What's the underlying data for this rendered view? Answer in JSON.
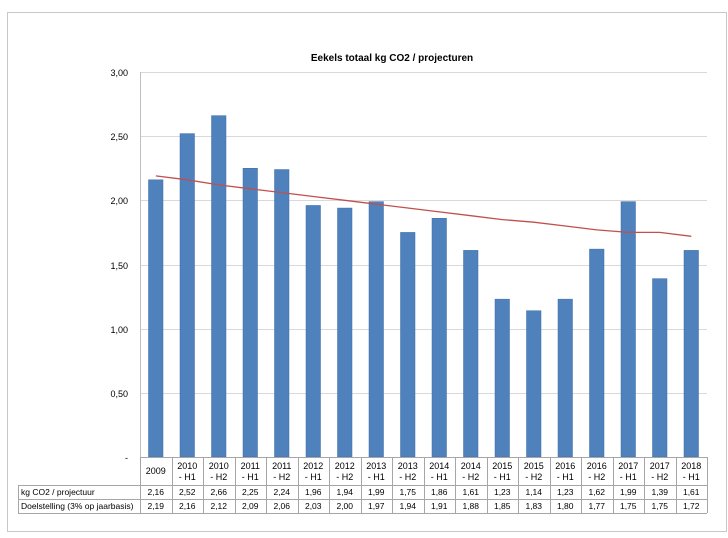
{
  "chart_data": {
    "type": "bar",
    "title": "Eekels totaal  kg CO2 / projecturen",
    "categories": [
      [
        "2009"
      ],
      [
        "2010",
        "- H1"
      ],
      [
        "2010",
        "- H2"
      ],
      [
        "2011",
        "- H1"
      ],
      [
        "2011",
        "- H2"
      ],
      [
        "2012",
        "- H1"
      ],
      [
        "2012",
        "- H2"
      ],
      [
        "2013",
        "- H1"
      ],
      [
        "2013",
        "- H2"
      ],
      [
        "2014",
        "- H1"
      ],
      [
        "2014",
        "- H2"
      ],
      [
        "2015",
        "- H1"
      ],
      [
        "2015",
        "- H2"
      ],
      [
        "2016",
        "- H1"
      ],
      [
        "2016",
        "- H2"
      ],
      [
        "2017",
        "- H1"
      ],
      [
        "2017",
        "- H2"
      ],
      [
        "2018",
        "- H1"
      ]
    ],
    "series": [
      {
        "name": "kg CO2 / projectuur",
        "type": "bar",
        "color": "#4f81bd",
        "values": [
          2.16,
          2.52,
          2.66,
          2.25,
          2.24,
          1.96,
          1.94,
          1.99,
          1.75,
          1.86,
          1.61,
          1.23,
          1.14,
          1.23,
          1.62,
          1.99,
          1.39,
          1.61
        ],
        "labels": [
          "2,16",
          "2,52",
          "2,66",
          "2,25",
          "2,24",
          "1,96",
          "1,94",
          "1,99",
          "1,75",
          "1,86",
          "1,61",
          "1,23",
          "1,14",
          "1,23",
          "1,62",
          "1,99",
          "1,39",
          "1,61"
        ]
      },
      {
        "name": "Doelstelling (3% op jaarbasis)",
        "type": "line",
        "color": "#c0504d",
        "values": [
          2.19,
          2.16,
          2.12,
          2.09,
          2.06,
          2.03,
          2.0,
          1.97,
          1.94,
          1.91,
          1.88,
          1.85,
          1.83,
          1.8,
          1.77,
          1.75,
          1.75,
          1.72
        ],
        "labels": [
          "2,19",
          "2,16",
          "2,12",
          "2,09",
          "2,06",
          "2,03",
          "2,00",
          "1,97",
          "1,94",
          "1,91",
          "1,88",
          "1,85",
          "1,83",
          "1,80",
          "1,77",
          "1,75",
          "1,75",
          "1,72"
        ]
      }
    ],
    "yticks": [
      {
        "value": 0,
        "label": "-"
      },
      {
        "value": 0.5,
        "label": "0,50"
      },
      {
        "value": 1.0,
        "label": "1,00"
      },
      {
        "value": 1.5,
        "label": "1,50"
      },
      {
        "value": 2.0,
        "label": "2,00"
      },
      {
        "value": 2.5,
        "label": "2,50"
      },
      {
        "value": 3.0,
        "label": "3,00"
      }
    ],
    "ylim": [
      0,
      3
    ],
    "grid": true,
    "legend": "data-table"
  }
}
